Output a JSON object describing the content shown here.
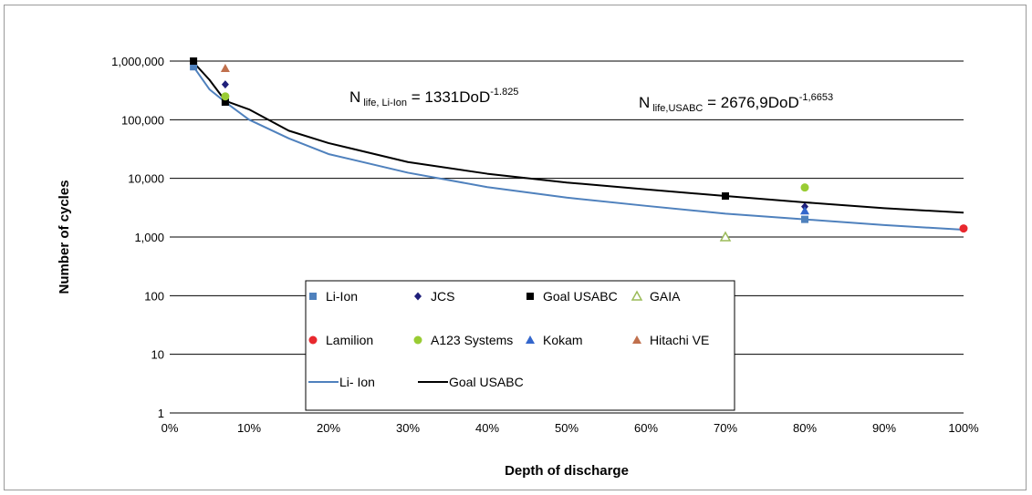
{
  "chart_data": {
    "type": "scatter",
    "xlabel": "Depth of discharge",
    "ylabel": "Number of cycles",
    "x_scale": "linear",
    "y_scale": "log",
    "xlim": [
      0,
      100
    ],
    "ylim": [
      1,
      1000000
    ],
    "x_ticks": [
      "0%",
      "10%",
      "20%",
      "30%",
      "40%",
      "50%",
      "60%",
      "70%",
      "80%",
      "90%",
      "100%"
    ],
    "y_ticks": [
      "1",
      "10",
      "100",
      "1,000",
      "10,000",
      "100,000",
      "1,000,000"
    ],
    "grid": "horizontal",
    "legend_position": "lower-center",
    "annotations": [
      {
        "base": "N",
        "sub": " life, Li-Ion",
        "mid": " = 1331DoD",
        "sup": "-1.825"
      },
      {
        "base": "N",
        "sub": " life,USABC",
        "mid": " = 2676,9DoD",
        "sup": "-1,6653"
      }
    ],
    "series": [
      {
        "name": "Li-Ion",
        "kind": "scatter",
        "marker": "square",
        "color": "#4f81bd",
        "points": [
          [
            3,
            800000
          ],
          [
            7,
            200000
          ],
          [
            80,
            2000
          ]
        ]
      },
      {
        "name": "JCS",
        "kind": "scatter",
        "marker": "diamond",
        "color": "#1f1f7a",
        "points": [
          [
            7,
            400000
          ],
          [
            80,
            3300
          ]
        ]
      },
      {
        "name": "Goal USABC",
        "kind": "scatter",
        "marker": "square",
        "color": "#000000",
        "points": [
          [
            3,
            1000000
          ],
          [
            7,
            200000
          ],
          [
            70,
            5000
          ]
        ]
      },
      {
        "name": "GAIA",
        "kind": "scatter",
        "marker": "triangle-open",
        "color": "#9bbb59",
        "points": [
          [
            70,
            1000
          ]
        ]
      },
      {
        "name": "Lamilion",
        "kind": "scatter",
        "marker": "circle",
        "color": "#e8282e",
        "points": [
          [
            100,
            1400
          ]
        ]
      },
      {
        "name": "A123 Systems",
        "kind": "scatter",
        "marker": "circle",
        "color": "#99cc33",
        "points": [
          [
            7,
            250000
          ],
          [
            80,
            7000
          ]
        ]
      },
      {
        "name": "Kokam",
        "kind": "scatter",
        "marker": "triangle",
        "color": "#3366cc",
        "points": [
          [
            80,
            2800
          ]
        ]
      },
      {
        "name": "Hitachi VE",
        "kind": "scatter",
        "marker": "triangle",
        "color": "#c0704d",
        "points": [
          [
            7,
            750000
          ]
        ]
      },
      {
        "name": "Li- Ion",
        "kind": "line",
        "color": "#4f81bd",
        "points": [
          [
            3,
            800000
          ],
          [
            5,
            330000
          ],
          [
            7,
            200000
          ],
          [
            10,
            100000
          ],
          [
            15,
            48000
          ],
          [
            20,
            26000
          ],
          [
            30,
            12500
          ],
          [
            40,
            7100
          ],
          [
            50,
            4700
          ],
          [
            60,
            3400
          ],
          [
            70,
            2500
          ],
          [
            80,
            2000
          ],
          [
            90,
            1600
          ],
          [
            100,
            1330
          ]
        ]
      },
      {
        "name": "Goal USABC",
        "kind": "line",
        "color": "#000000",
        "points": [
          [
            3,
            950000
          ],
          [
            5,
            480000
          ],
          [
            7,
            210000
          ],
          [
            10,
            150000
          ],
          [
            15,
            65000
          ],
          [
            20,
            40000
          ],
          [
            30,
            19000
          ],
          [
            40,
            12000
          ],
          [
            50,
            8500
          ],
          [
            60,
            6500
          ],
          [
            70,
            5000
          ],
          [
            80,
            3900
          ],
          [
            90,
            3100
          ],
          [
            100,
            2600
          ]
        ]
      }
    ]
  }
}
